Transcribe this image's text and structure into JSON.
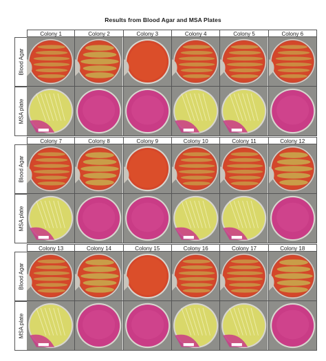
{
  "title": "Results from Blood Agar and MSA Plates",
  "row_labels": {
    "blood": "Blood Agar",
    "msa": "MSA plate"
  },
  "groups": [
    {
      "colonies": [
        "Colony 1",
        "Colony 2",
        "Colony 3",
        "Colony 4",
        "Colony 5",
        "Colony 6"
      ],
      "blood": [
        "streaked",
        "streaked-heavy",
        "smooth-red",
        "streaked",
        "streaked",
        "streaked"
      ],
      "msa": [
        "yellow",
        "pink",
        "pink",
        "yellow",
        "yellow",
        "pink"
      ]
    },
    {
      "colonies": [
        "Colony 7",
        "Colony 8",
        "Colony 9",
        "Colony 10",
        "Colony 11",
        "Colony 12"
      ],
      "blood": [
        "streaked",
        "streaked-heavy",
        "smooth-red",
        "streaked",
        "streaked",
        "streaked-heavy"
      ],
      "msa": [
        "yellow",
        "pink",
        "pink",
        "yellow",
        "yellow",
        "pink"
      ]
    },
    {
      "colonies": [
        "Colony 13",
        "Colony 14",
        "Colony 15",
        "Colony 16",
        "Colony 17",
        "Colony 18"
      ],
      "blood": [
        "streaked",
        "streaked-heavy",
        "smooth-red",
        "streaked",
        "streaked",
        "streaked-heavy"
      ],
      "msa": [
        "yellow",
        "pink",
        "pink",
        "yellow",
        "yellow",
        "pink"
      ]
    }
  ],
  "colors": {
    "blood_agar": "#d4472a",
    "blood_growth": "#c8a24a",
    "msa_yellow": "#d9d86a",
    "msa_pink": "#c93c86",
    "background_gray": "#8e8e8a"
  }
}
